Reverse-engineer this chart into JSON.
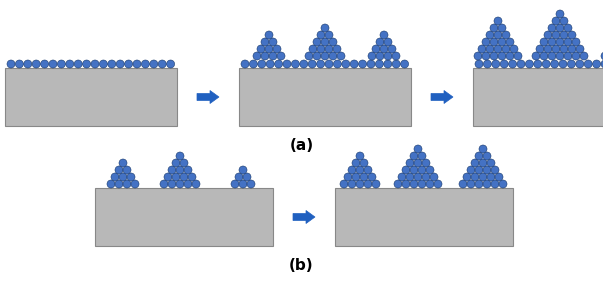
{
  "bg_color": "#ffffff",
  "substrate_color": "#b8b8b8",
  "substrate_edge": "#888888",
  "atom_face_color": "#4472c4",
  "atom_edge_color": "#1a3a6b",
  "arrow_color": "#2060c0",
  "label_a": "(a)",
  "label_b": "(b)",
  "label_fontsize": 11,
  "fig_w": 6.03,
  "fig_h": 3.07,
  "dpi": 100
}
